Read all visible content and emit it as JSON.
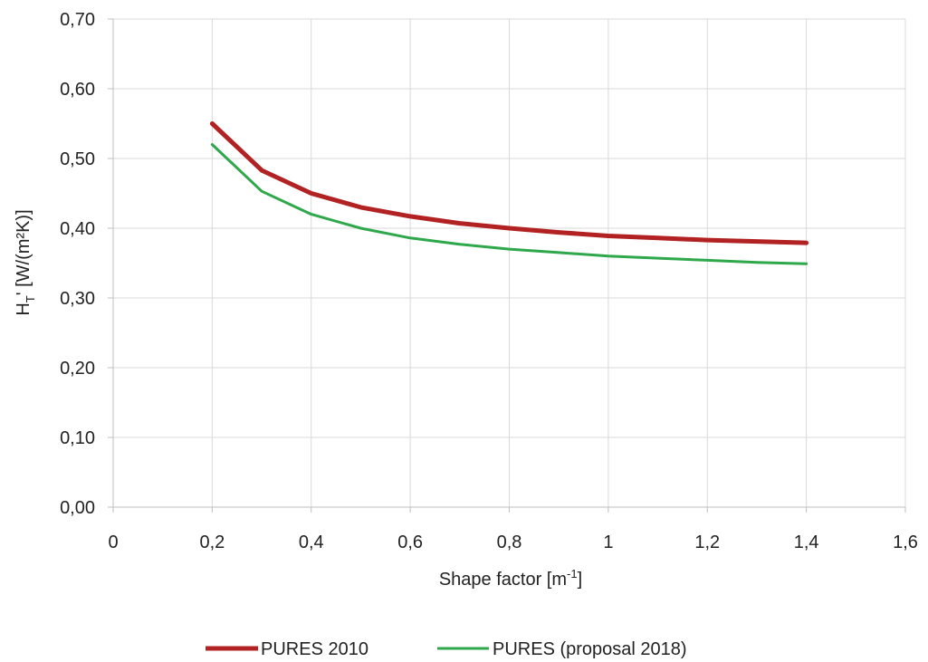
{
  "chart_data": {
    "type": "line",
    "title": "",
    "xlabel": {
      "main": "Shape factor [m",
      "sup": "-1",
      "end": "]"
    },
    "ylabel": {
      "main": "H",
      "sub": "T",
      "after": "' [W/(m²K)]"
    },
    "xlim": [
      0,
      1.6
    ],
    "ylim": [
      0,
      0.7
    ],
    "x_ticks": [
      {
        "value": 0,
        "label": "0"
      },
      {
        "value": 0.2,
        "label": "0,2"
      },
      {
        "value": 0.4,
        "label": "0,4"
      },
      {
        "value": 0.6,
        "label": "0,6"
      },
      {
        "value": 0.8,
        "label": "0,8"
      },
      {
        "value": 1.0,
        "label": "1"
      },
      {
        "value": 1.2,
        "label": "1,2"
      },
      {
        "value": 1.4,
        "label": "1,4"
      },
      {
        "value": 1.6,
        "label": "1,6"
      }
    ],
    "y_ticks": [
      {
        "value": 0.0,
        "label": "0,00"
      },
      {
        "value": 0.1,
        "label": "0,10"
      },
      {
        "value": 0.2,
        "label": "0,20"
      },
      {
        "value": 0.3,
        "label": "0,30"
      },
      {
        "value": 0.4,
        "label": "0,40"
      },
      {
        "value": 0.5,
        "label": "0,50"
      },
      {
        "value": 0.6,
        "label": "0,60"
      },
      {
        "value": 0.7,
        "label": "0,70"
      }
    ],
    "grid": true,
    "legend_position": "bottom",
    "x": [
      0.2,
      0.3,
      0.4,
      0.5,
      0.6,
      0.7,
      0.8,
      0.9,
      1.0,
      1.1,
      1.2,
      1.3,
      1.4
    ],
    "series": [
      {
        "name": "PURES 2010",
        "color": "#b22222",
        "values": [
          0.55,
          0.483,
          0.45,
          0.43,
          0.417,
          0.407,
          0.4,
          0.394,
          0.389,
          0.386,
          0.383,
          0.381,
          0.379
        ]
      },
      {
        "name": "PURES (proposal 2018)",
        "color": "#2ea84a",
        "values": [
          0.52,
          0.453,
          0.42,
          0.4,
          0.386,
          0.377,
          0.37,
          0.365,
          0.36,
          0.357,
          0.354,
          0.351,
          0.349
        ]
      }
    ]
  }
}
